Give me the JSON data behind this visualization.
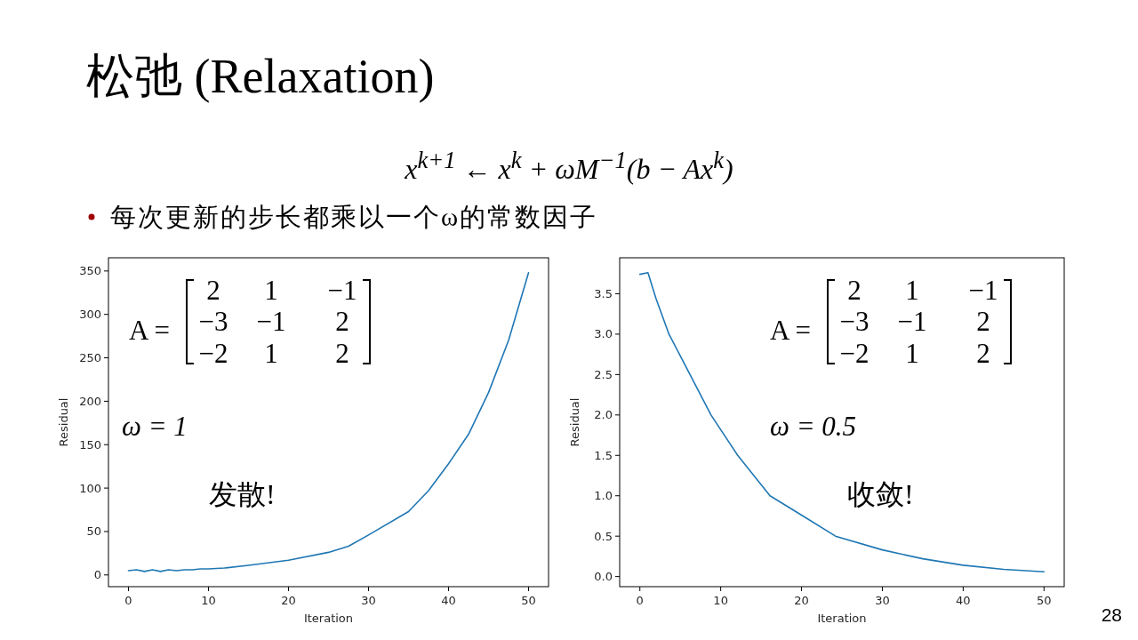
{
  "chart_data": [
    {
      "type": "line",
      "title": "松弛 (Relaxation)",
      "subtitle": "x$^{k+1}$ ← x$^{k}$ + ωM$^{−1}$(b − Ax$^{k}$)",
      "annotations": [
        "每次更新的步长都乘以一个ω的常数因子",
        "28",
        "A =",
        "2 1 −1",
        "−3 −1 2",
        "−2 1 2",
        "ω = 1",
        "发散!"
      ],
      "xlabel": "Iteration",
      "ylabel": "Residual",
      "series": [
        {
          "color": "#1f77b4",
          "x": [
            0,
            1,
            2,
            3,
            4,
            5,
            6,
            7,
            8,
            9,
            10,
            12,
            15,
            20,
            25,
            27.5,
            30,
            35,
            37.5,
            40,
            42.5,
            45,
            47.5,
            50
          ],
          "values": [
            5,
            6,
            4,
            6,
            4,
            6,
            5,
            6,
            6,
            7,
            7,
            8,
            11,
            17,
            26,
            33,
            46,
            73,
            97,
            128,
            162,
            210,
            270,
            348
          ]
        }
      ],
      "xlim": [
        -2.5,
        52.5
      ],
      "ylim": [
        -13.5,
        365.2
      ],
      "xticks": [
        0,
        10,
        20,
        30,
        40,
        50
      ],
      "yticks": [
        0,
        50,
        100,
        150,
        200,
        250,
        300,
        350
      ],
      "grid": false
    },
    {
      "type": "line",
      "annotations": [
        "A =",
        "2 1 −1",
        "−3 −1 2",
        "−2 1 2",
        "ω = 0.5",
        "收敛!"
      ],
      "xlabel": "Iteration",
      "ylabel": "Residual",
      "series": [
        {
          "color": "#1f77b4",
          "x": [
            0,
            1,
            2,
            3.6,
            6.2,
            8.8,
            12.1,
            16.1,
            20,
            24.2,
            30,
            35,
            40,
            45,
            50
          ],
          "values": [
            3.74,
            3.76,
            3.44,
            3.0,
            2.5,
            2.0,
            1.5,
            1.0,
            0.76,
            0.5,
            0.33,
            0.22,
            0.14,
            0.09,
            0.06
          ]
        }
      ],
      "xlim": [
        -2.5,
        52.5
      ],
      "ylim": [
        -0.125,
        3.945
      ],
      "xticks": [
        0,
        10,
        20,
        30,
        40,
        50
      ],
      "yticks": [
        {
          "value": 0,
          "label": "0.0"
        },
        {
          "value": 0.5,
          "label": "0.5"
        },
        {
          "value": 1,
          "label": "1.0"
        },
        {
          "value": 1.5,
          "label": "1.5"
        },
        {
          "value": 2,
          "label": "2.0"
        },
        {
          "value": 2.5,
          "label": "2.5"
        },
        {
          "value": 3,
          "label": "3.0"
        },
        {
          "value": 3.5,
          "label": "3.5"
        }
      ],
      "grid": false
    }
  ]
}
